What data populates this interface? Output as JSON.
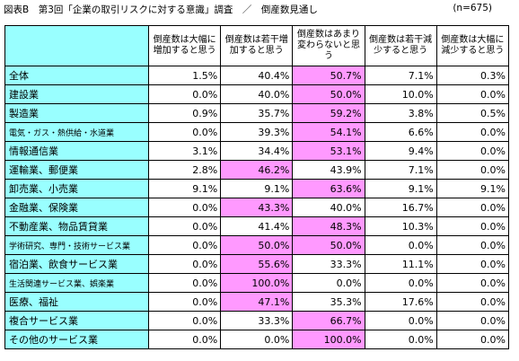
{
  "title": "図表B　第3回「企業の取引リスクに対する意識」調査　／　倒産数見通し",
  "sample_size": "(n=675)",
  "colors": {
    "label_bg": "#99ffff",
    "highlight_bg": "#ff99ff"
  },
  "columns": [
    "倒産数は大幅に増加すると思う",
    "倒産数は若干増加すると思う",
    "倒産数はあまり変わらないと思う",
    "倒産数は若干減少すると思う",
    "倒産数は大幅に減少すると思う"
  ],
  "rows": [
    {
      "label": "全体",
      "values": [
        "1.5%",
        "40.4%",
        "50.7%",
        "7.1%",
        "0.3%"
      ],
      "highlight": 2
    },
    {
      "label": "建設業",
      "values": [
        "0.0%",
        "40.0%",
        "50.0%",
        "10.0%",
        "0.0%"
      ],
      "highlight": 2
    },
    {
      "label": "製造業",
      "values": [
        "0.9%",
        "35.7%",
        "59.2%",
        "3.8%",
        "0.5%"
      ],
      "highlight": 2
    },
    {
      "label": "電気・ガス・熱供給・水道業",
      "values": [
        "0.0%",
        "39.3%",
        "54.1%",
        "6.6%",
        "0.0%"
      ],
      "highlight": 2
    },
    {
      "label": "情報通信業",
      "values": [
        "3.1%",
        "34.4%",
        "53.1%",
        "9.4%",
        "0.0%"
      ],
      "highlight": 2
    },
    {
      "label": "運輸業、郵便業",
      "values": [
        "2.8%",
        "46.2%",
        "43.9%",
        "7.1%",
        "0.0%"
      ],
      "highlight": 1
    },
    {
      "label": "卸売業、小売業",
      "values": [
        "9.1%",
        "9.1%",
        "63.6%",
        "9.1%",
        "9.1%"
      ],
      "highlight": 2
    },
    {
      "label": "金融業、保険業",
      "values": [
        "0.0%",
        "43.3%",
        "40.0%",
        "16.7%",
        "0.0%"
      ],
      "highlight": 1
    },
    {
      "label": "不動産業、物品賃貸業",
      "values": [
        "0.0%",
        "41.4%",
        "48.3%",
        "10.3%",
        "0.0%"
      ],
      "highlight": 2
    },
    {
      "label": "学術研究、専門・技術サービス業",
      "values": [
        "0.0%",
        "50.0%",
        "50.0%",
        "0.0%",
        "0.0%"
      ],
      "highlight": [
        1,
        2
      ]
    },
    {
      "label": "宿泊業、飲食サービス業",
      "values": [
        "0.0%",
        "55.6%",
        "33.3%",
        "11.1%",
        "0.0%"
      ],
      "highlight": 1
    },
    {
      "label": "生活関連サービス業、娯楽業",
      "values": [
        "0.0%",
        "100.0%",
        "0.0%",
        "0.0%",
        "0.0%"
      ],
      "highlight": 1
    },
    {
      "label": "医療、福祉",
      "values": [
        "0.0%",
        "47.1%",
        "35.3%",
        "17.6%",
        "0.0%"
      ],
      "highlight": 1
    },
    {
      "label": "複合サービス業",
      "values": [
        "0.0%",
        "33.3%",
        "66.7%",
        "0.0%",
        "0.0%"
      ],
      "highlight": 2
    },
    {
      "label": "その他のサービス業",
      "values": [
        "0.0%",
        "0.0%",
        "100.0%",
        "0.0%",
        "0.0%"
      ],
      "highlight": 2
    }
  ]
}
